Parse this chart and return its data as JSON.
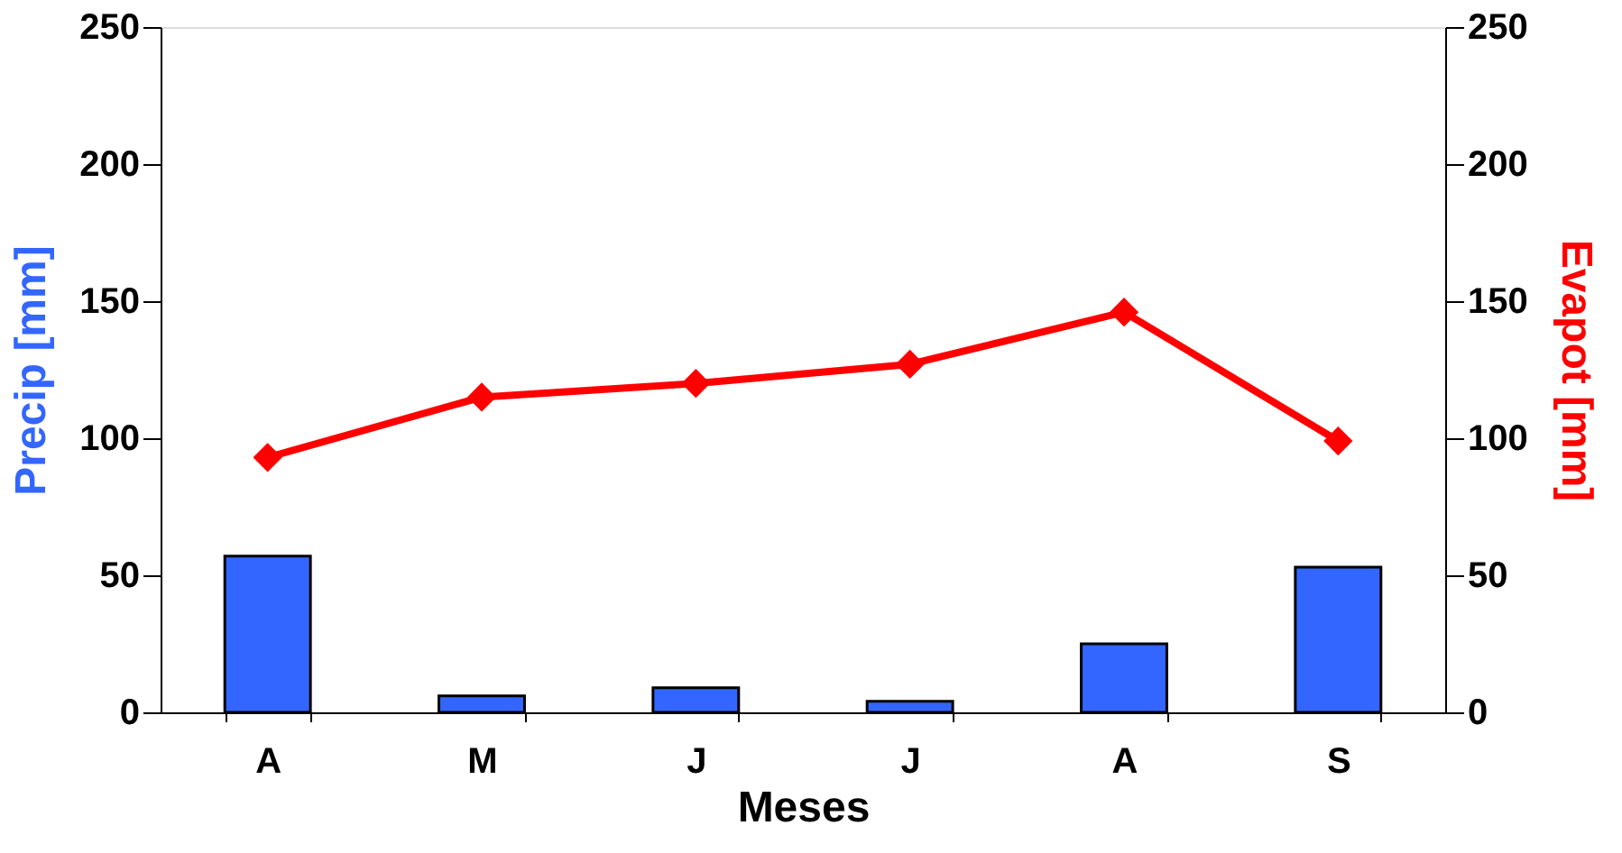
{
  "chart_data": {
    "type": "bar",
    "xlabel": "Meses",
    "ylabel": "Precip [mm]",
    "y2label": "Evapot [mm]",
    "categories": [
      "A",
      "M",
      "J",
      "J",
      "A",
      "S"
    ],
    "series": [
      {
        "color": "#3366ff",
        "values": [
          57,
          6,
          9,
          4,
          25,
          53
        ]
      },
      {
        "type": "line",
        "axis": "y2",
        "color": "#ff0000",
        "marker": "diamond",
        "values": [
          93,
          115,
          120,
          127,
          146,
          99
        ]
      }
    ],
    "ylim": [
      0,
      250
    ],
    "yticks": [
      0,
      50,
      100,
      150,
      200,
      250
    ],
    "y2lim": [
      0,
      250
    ],
    "y2ticks": [
      0,
      50,
      100,
      150,
      200,
      250
    ],
    "grid": false
  }
}
